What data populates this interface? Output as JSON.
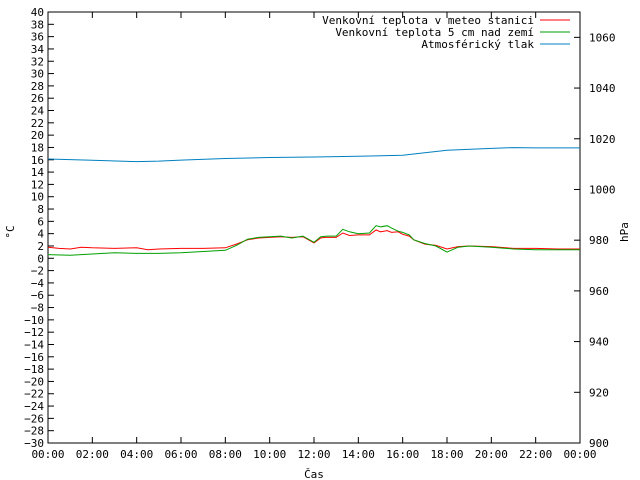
{
  "chart_data": {
    "type": "line",
    "title": "",
    "xlabel": "Čas",
    "ylabel": "°C",
    "y2label": "hPa",
    "x_ticks": [
      "00:00",
      "02:00",
      "04:00",
      "06:00",
      "08:00",
      "10:00",
      "12:00",
      "14:00",
      "16:00",
      "18:00",
      "20:00",
      "22:00",
      "00:00"
    ],
    "xlim": [
      0,
      24
    ],
    "ylim": [
      -30,
      40
    ],
    "y_step": 2,
    "y2lim": [
      900,
      1070
    ],
    "y2_ticks": [
      900,
      920,
      940,
      960,
      980,
      1000,
      1020,
      1040,
      1060
    ],
    "grid": false,
    "legend_position": "top-right",
    "series": [
      {
        "name": "Venkovní teplota v meteo stanici",
        "color": "#ff0000",
        "axis": "left",
        "points": [
          [
            0,
            1.8
          ],
          [
            0.5,
            1.6
          ],
          [
            1,
            1.5
          ],
          [
            1.5,
            1.8
          ],
          [
            2,
            1.7
          ],
          [
            3,
            1.6
          ],
          [
            4,
            1.7
          ],
          [
            4.5,
            1.4
          ],
          [
            5,
            1.5
          ],
          [
            6,
            1.6
          ],
          [
            7,
            1.6
          ],
          [
            8,
            1.7
          ],
          [
            8.5,
            2.3
          ],
          [
            9,
            3.0
          ],
          [
            9.5,
            3.3
          ],
          [
            10,
            3.4
          ],
          [
            10.5,
            3.5
          ],
          [
            11,
            3.4
          ],
          [
            11.5,
            3.5
          ],
          [
            12,
            2.5
          ],
          [
            12.3,
            3.3
          ],
          [
            12.5,
            3.4
          ],
          [
            13,
            3.4
          ],
          [
            13.3,
            4.1
          ],
          [
            13.6,
            3.7
          ],
          [
            14,
            3.8
          ],
          [
            14.5,
            3.8
          ],
          [
            14.8,
            4.6
          ],
          [
            15,
            4.3
          ],
          [
            15.3,
            4.5
          ],
          [
            15.5,
            4.2
          ],
          [
            15.8,
            4.3
          ],
          [
            16,
            3.9
          ],
          [
            16.3,
            3.6
          ],
          [
            16.5,
            3.0
          ],
          [
            17,
            2.3
          ],
          [
            17.5,
            2.1
          ],
          [
            18,
            1.5
          ],
          [
            18.5,
            1.9
          ],
          [
            19,
            2.0
          ],
          [
            20,
            1.9
          ],
          [
            21,
            1.6
          ],
          [
            22,
            1.6
          ],
          [
            23,
            1.5
          ],
          [
            24,
            1.5
          ]
        ]
      },
      {
        "name": "Venkovní teplota 5 cm nad zemí",
        "color": "#00a000",
        "axis": "left",
        "points": [
          [
            0,
            0.6
          ],
          [
            1,
            0.5
          ],
          [
            2,
            0.7
          ],
          [
            3,
            0.9
          ],
          [
            4,
            0.8
          ],
          [
            5,
            0.8
          ],
          [
            6,
            0.9
          ],
          [
            7,
            1.1
          ],
          [
            8,
            1.3
          ],
          [
            8.5,
            2.1
          ],
          [
            9,
            3.1
          ],
          [
            9.5,
            3.4
          ],
          [
            10,
            3.5
          ],
          [
            10.5,
            3.6
          ],
          [
            11,
            3.3
          ],
          [
            11.5,
            3.6
          ],
          [
            12,
            2.6
          ],
          [
            12.3,
            3.5
          ],
          [
            12.6,
            3.6
          ],
          [
            13,
            3.6
          ],
          [
            13.3,
            4.7
          ],
          [
            13.6,
            4.3
          ],
          [
            14,
            4.0
          ],
          [
            14.5,
            4.1
          ],
          [
            14.8,
            5.3
          ],
          [
            15,
            5.1
          ],
          [
            15.3,
            5.3
          ],
          [
            15.5,
            4.9
          ],
          [
            15.8,
            4.4
          ],
          [
            16,
            4.2
          ],
          [
            16.3,
            3.8
          ],
          [
            16.5,
            3.0
          ],
          [
            17,
            2.4
          ],
          [
            17.5,
            2.0
          ],
          [
            18,
            1.0
          ],
          [
            18.5,
            1.8
          ],
          [
            19,
            2.0
          ],
          [
            20,
            1.8
          ],
          [
            21,
            1.5
          ],
          [
            22,
            1.4
          ],
          [
            23,
            1.4
          ],
          [
            24,
            1.4
          ]
        ]
      },
      {
        "name": "Atmosférický tlak",
        "color": "#0080c0",
        "axis": "right",
        "points": [
          [
            0,
            1012
          ],
          [
            2,
            1011.5
          ],
          [
            4,
            1011
          ],
          [
            5,
            1011.2
          ],
          [
            6,
            1011.6
          ],
          [
            8,
            1012.2
          ],
          [
            10,
            1012.6
          ],
          [
            12,
            1012.8
          ],
          [
            14,
            1013.1
          ],
          [
            16,
            1013.5
          ],
          [
            17,
            1014.5
          ],
          [
            18,
            1015.5
          ],
          [
            20,
            1016.2
          ],
          [
            21,
            1016.5
          ],
          [
            22,
            1016.4
          ],
          [
            24,
            1016.4
          ]
        ]
      }
    ]
  }
}
